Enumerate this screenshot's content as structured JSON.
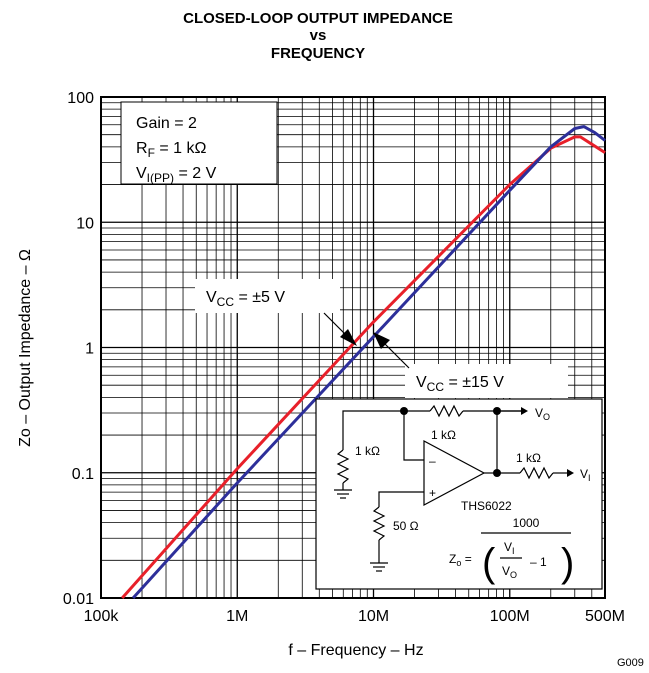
{
  "chart_data": {
    "type": "line",
    "title_lines": [
      "CLOSED-LOOP OUTPUT IMPEDANCE",
      "vs",
      "FREQUENCY"
    ],
    "xlabel": "f – Frequency – Hz",
    "ylabel": "Zo – Output Impedance – Ω",
    "x_scale": "log",
    "y_scale": "log",
    "xlim": [
      100000,
      500000000
    ],
    "ylim": [
      0.01,
      100
    ],
    "x_ticks": [
      {
        "value": 100000,
        "label": "100k"
      },
      {
        "value": 1000000,
        "label": "1M"
      },
      {
        "value": 10000000,
        "label": "10M"
      },
      {
        "value": 100000000,
        "label": "100M"
      },
      {
        "value": 500000000,
        "label": "500M"
      }
    ],
    "y_ticks": [
      {
        "value": 0.01,
        "label": "0.01"
      },
      {
        "value": 0.1,
        "label": "0.1"
      },
      {
        "value": 1,
        "label": "1"
      },
      {
        "value": 10,
        "label": "10"
      },
      {
        "value": 100,
        "label": "100"
      }
    ],
    "grid": true,
    "series": [
      {
        "name": "VCC = ±5 V",
        "color": "#e8202a",
        "points": [
          [
            143000,
            0.01
          ],
          [
            1000000,
            0.108
          ],
          [
            10000000,
            1.6
          ],
          [
            100000000,
            20
          ],
          [
            200000000,
            39
          ],
          [
            300000000,
            48
          ],
          [
            330000000,
            48
          ],
          [
            400000000,
            42
          ],
          [
            500000000,
            36
          ]
        ]
      },
      {
        "name": "VCC = ±15 V",
        "color": "#2d2f9a",
        "points": [
          [
            172000,
            0.01
          ],
          [
            1000000,
            0.083
          ],
          [
            10000000,
            1.22
          ],
          [
            100000000,
            18
          ],
          [
            200000000,
            40
          ],
          [
            300000000,
            56
          ],
          [
            350000000,
            58
          ],
          [
            420000000,
            52
          ],
          [
            500000000,
            45
          ]
        ]
      }
    ],
    "conditions": {
      "gain": "Gain = 2",
      "rf_main": "R",
      "rf_sub": "F",
      "rf_value": " = 1 kΩ",
      "vi_main": "V",
      "vi_sub": "I(PP)",
      "vi_value": " = 2 V"
    },
    "callouts": {
      "vcc5_main": "V",
      "vcc5_sub": "CC",
      "vcc5_value": " = ±5 V",
      "vcc15_main": "V",
      "vcc15_sub": "CC",
      "vcc15_value": " = ±15 V"
    },
    "schematic": {
      "r_gnd": "1 kΩ",
      "r_feedback": "1 kΩ",
      "r_input": "1 kΩ",
      "r_plus": "50 Ω",
      "minus_sign": "–",
      "plus_sign": "+",
      "vo_main": "V",
      "vo_sub": "O",
      "vi_main": "V",
      "vi_sub": "I",
      "part": "THS6022",
      "zo_main": "Z",
      "zo_sub": "o",
      "zo_eq": " =",
      "numerator": "1000",
      "frac_vi_main": "V",
      "frac_vi_sub": "I",
      "frac_vo_main": "V",
      "frac_vo_sub": "O",
      "minus_one": "– 1"
    },
    "figure_code": "G009"
  }
}
